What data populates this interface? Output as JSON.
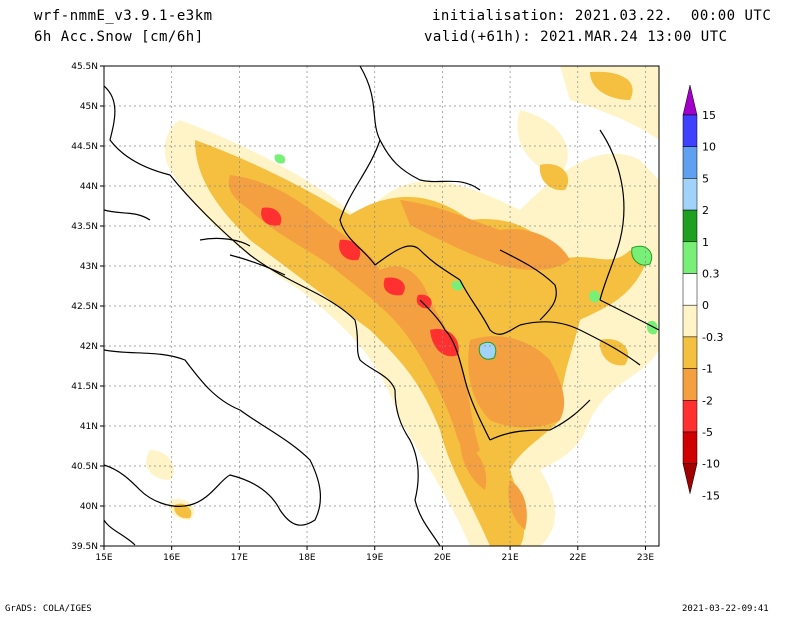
{
  "header": {
    "model": "wrf-nmmE_v3.9.1-e3km",
    "field": "6h Acc.Snow [cm/6h]",
    "initialisation": "initialisation: 2021.03.22.  00:00 UTC",
    "valid": "valid(+61h): 2021.MAR.24 13:00 UTC"
  },
  "footer": {
    "left": "GrADS: COLA/IGES",
    "right": "2021-03-22-09:41"
  },
  "axes": {
    "lat_labels": [
      "45.5N",
      "45N",
      "44.5N",
      "44N",
      "43.5N",
      "43N",
      "42.5N",
      "42N",
      "41.5N",
      "41N",
      "40.5N",
      "40N",
      "39.5N"
    ],
    "lon_labels": [
      "15E",
      "16E",
      "17E",
      "18E",
      "19E",
      "20E",
      "21E",
      "22E",
      "23E"
    ],
    "lat_range": [
      39.5,
      45.5
    ],
    "lon_range": [
      15,
      23.2
    ]
  },
  "colorbar": {
    "labels": [
      "15",
      "10",
      "5",
      "2",
      "1",
      "0.3",
      "0",
      "-0.3",
      "-1",
      "-2",
      "-5",
      "-10",
      "-15"
    ],
    "colors": [
      "#a000c8",
      "#4040ff",
      "#60a0f0",
      "#a0d2fa",
      "#20a020",
      "#78f078",
      "#ffffff",
      "#fff4c8",
      "#f5c040",
      "#f5a040",
      "#ff3030",
      "#d00000",
      "#a00000"
    ]
  },
  "colors": {
    "light": "#fff4c8",
    "yellow": "#f5c040",
    "orange": "#f5a040",
    "red": "#ff3030",
    "green": "#78f078",
    "darkgreen": "#20a020",
    "blue": "#a0d2fa",
    "grid": "#888888"
  }
}
